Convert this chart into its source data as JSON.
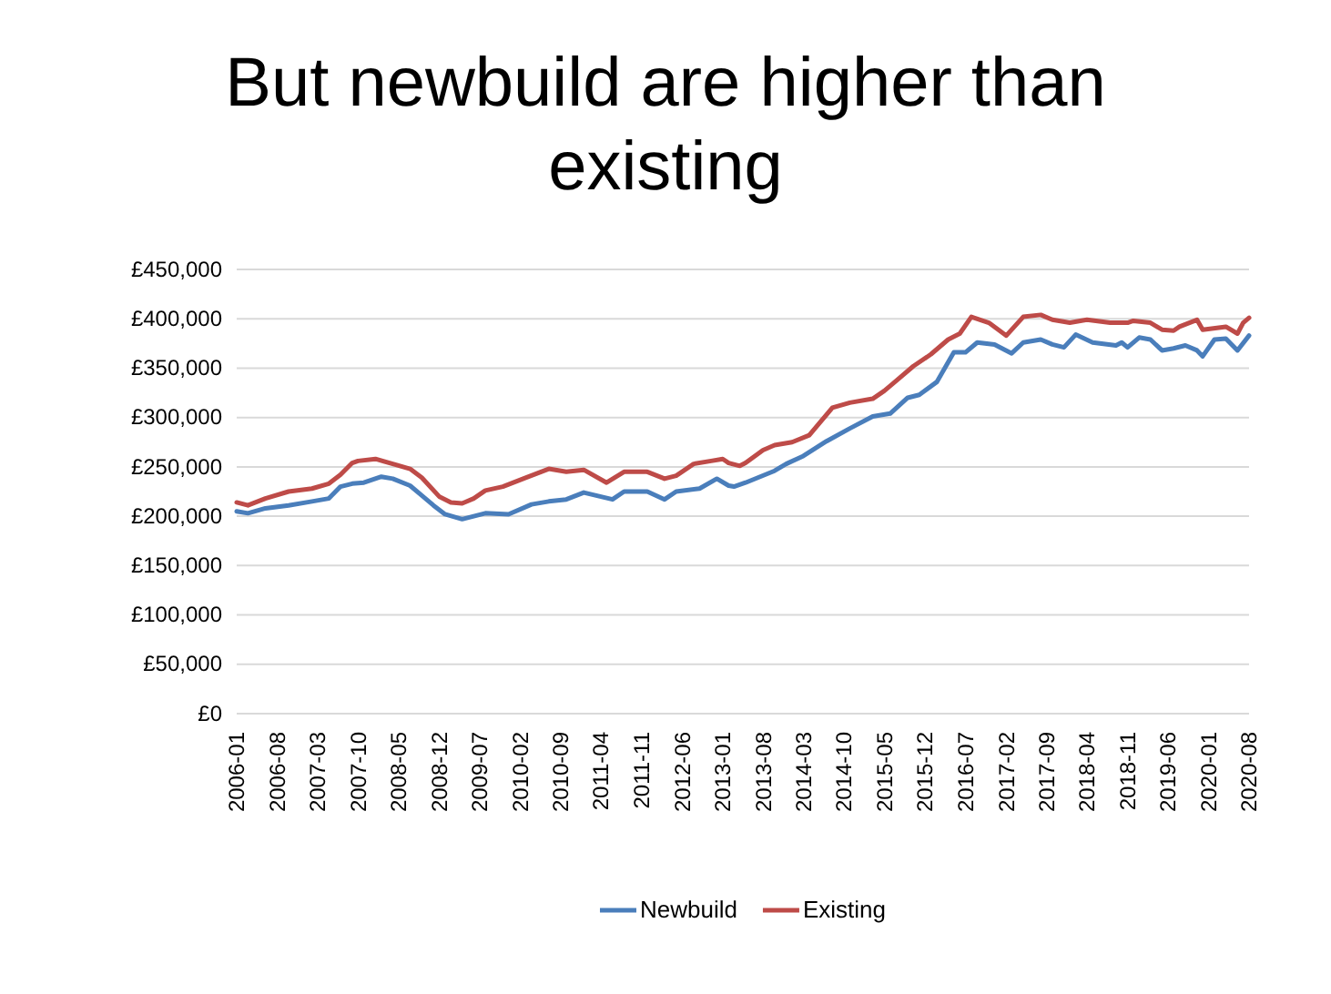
{
  "chart_data": {
    "type": "line",
    "title": "But newbuild are higher than existing",
    "xlim": [
      "2006-01",
      "2020-08"
    ],
    "xticks": [
      "2006-01",
      "2006-08",
      "2007-03",
      "2007-10",
      "2008-05",
      "2008-12",
      "2009-07",
      "2010-02",
      "2010-09",
      "2011-04",
      "2011-11",
      "2012-06",
      "2013-01",
      "2013-08",
      "2014-03",
      "2014-10",
      "2015-05",
      "2015-12",
      "2016-07",
      "2017-02",
      "2017-09",
      "2018-04",
      "2018-11",
      "2019-06",
      "2020-01",
      "2020-08"
    ],
    "ylim": [
      0,
      450000
    ],
    "yticks": [
      {
        "value": 0,
        "label": "£0"
      },
      {
        "value": 50000,
        "label": "£50,000"
      },
      {
        "value": 100000,
        "label": "£100,000"
      },
      {
        "value": 150000,
        "label": "£150,000"
      },
      {
        "value": 200000,
        "label": "£200,000"
      },
      {
        "value": 250000,
        "label": "£250,000"
      },
      {
        "value": 300000,
        "label": "£300,000"
      },
      {
        "value": 350000,
        "label": "£350,000"
      },
      {
        "value": 400000,
        "label": "£400,000"
      },
      {
        "value": 450000,
        "label": "£450,000"
      }
    ],
    "grid": "y",
    "legend": "bottom",
    "marker": "none",
    "line_style": "solid",
    "series": [
      {
        "name": "Newbuild",
        "color": "#4a7ebb",
        "x": [
          "2006-01",
          "2006-03",
          "2006-06",
          "2006-10",
          "2007-02",
          "2007-05",
          "2007-07",
          "2007-09",
          "2007-11",
          "2008-02",
          "2008-04",
          "2008-07",
          "2008-09",
          "2008-11",
          "2009-01",
          "2009-04",
          "2009-06",
          "2009-08",
          "2009-12",
          "2010-04",
          "2010-07",
          "2010-10",
          "2011-01",
          "2011-06",
          "2011-08",
          "2011-12",
          "2012-03",
          "2012-05",
          "2012-09",
          "2012-12",
          "2013-02",
          "2013-03",
          "2013-05",
          "2013-10",
          "2013-12",
          "2014-03",
          "2014-07",
          "2014-11",
          "2015-03",
          "2015-06",
          "2015-09",
          "2015-11",
          "2016-02",
          "2016-05",
          "2016-07",
          "2016-09",
          "2016-12",
          "2017-03",
          "2017-05",
          "2017-08",
          "2017-10",
          "2017-12",
          "2018-02",
          "2018-05",
          "2018-09",
          "2018-10",
          "2018-11",
          "2019-01",
          "2019-03",
          "2019-05",
          "2019-07",
          "2019-09",
          "2019-11",
          "2019-12",
          "2020-02",
          "2020-04",
          "2020-06",
          "2020-08"
        ],
        "values": [
          205000,
          203000,
          208000,
          211000,
          215000,
          218000,
          230000,
          233000,
          234000,
          240000,
          238000,
          231000,
          221000,
          211000,
          202000,
          197000,
          200000,
          203000,
          202000,
          212000,
          215000,
          217000,
          224000,
          217000,
          225000,
          225000,
          217000,
          225000,
          228000,
          238000,
          231000,
          230000,
          234000,
          246000,
          253000,
          261000,
          276000,
          289000,
          301000,
          304000,
          320000,
          323000,
          336000,
          366000,
          366000,
          376000,
          374000,
          365000,
          376000,
          379000,
          374000,
          371000,
          384000,
          376000,
          373000,
          376000,
          371000,
          381000,
          379000,
          368000,
          370000,
          373000,
          368000,
          362000,
          379000,
          380000,
          368000,
          383000
        ]
      },
      {
        "name": "Existing",
        "color": "#be4b48",
        "x": [
          "2006-01",
          "2006-03",
          "2006-06",
          "2006-10",
          "2007-02",
          "2007-05",
          "2007-07",
          "2007-09",
          "2007-10",
          "2008-01",
          "2008-04",
          "2008-07",
          "2008-09",
          "2008-12",
          "2009-02",
          "2009-04",
          "2009-06",
          "2009-08",
          "2009-11",
          "2010-03",
          "2010-07",
          "2010-10",
          "2011-01",
          "2011-05",
          "2011-08",
          "2011-12",
          "2012-03",
          "2012-05",
          "2012-08",
          "2012-11",
          "2013-01",
          "2013-02",
          "2013-04",
          "2013-05",
          "2013-08",
          "2013-10",
          "2014-01",
          "2014-04",
          "2014-08",
          "2014-11",
          "2015-03",
          "2015-05",
          "2015-07",
          "2015-10",
          "2016-01",
          "2016-04",
          "2016-06",
          "2016-08",
          "2016-11",
          "2017-02",
          "2017-05",
          "2017-08",
          "2017-10",
          "2018-01",
          "2018-04",
          "2018-08",
          "2018-11",
          "2018-12",
          "2019-03",
          "2019-05",
          "2019-07",
          "2019-08",
          "2019-11",
          "2019-12",
          "2020-04",
          "2020-06",
          "2020-07",
          "2020-08"
        ],
        "values": [
          214000,
          211000,
          218000,
          225000,
          228000,
          233000,
          242000,
          254000,
          256000,
          258000,
          253000,
          248000,
          239000,
          220000,
          214000,
          213000,
          218000,
          226000,
          230000,
          239000,
          248000,
          245000,
          247000,
          234000,
          245000,
          245000,
          238000,
          241000,
          253000,
          256000,
          258000,
          254000,
          251000,
          254000,
          267000,
          272000,
          275000,
          282000,
          310000,
          315000,
          319000,
          327000,
          337000,
          352000,
          364000,
          379000,
          385000,
          402000,
          396000,
          383000,
          402000,
          404000,
          399000,
          396000,
          399000,
          396000,
          396000,
          398000,
          396000,
          389000,
          388000,
          392000,
          399000,
          389000,
          392000,
          385000,
          396000,
          401000
        ]
      }
    ]
  }
}
